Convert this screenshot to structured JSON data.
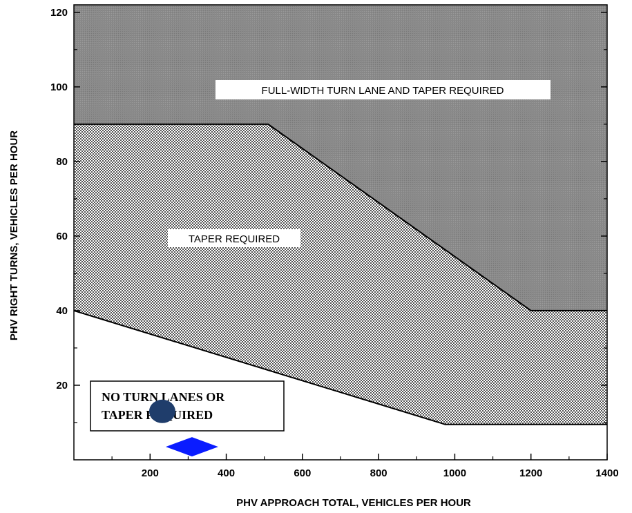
{
  "chart_data": {
    "type": "area",
    "xlabel": "PHV APPROACH TOTAL, VEHICLES PER HOUR",
    "ylabel": "PHV RIGHT TURNS, VEHICLES PER HOUR",
    "xlim": [
      0,
      1400
    ],
    "ylim": [
      0,
      122
    ],
    "xticks": [
      200,
      400,
      600,
      800,
      1000,
      1200,
      1400
    ],
    "yticks": [
      20,
      40,
      60,
      80,
      100,
      120
    ],
    "grid": false,
    "boundaries": [
      {
        "points": [
          [
            0,
            40
          ],
          [
            975,
            9.5
          ],
          [
            1400,
            9.5
          ]
        ]
      },
      {
        "points": [
          [
            0,
            90
          ],
          [
            510,
            90
          ],
          [
            1200,
            40
          ],
          [
            1400,
            40
          ]
        ]
      }
    ],
    "regions": [
      {
        "label": "FULL-WIDTH TURN LANE AND TAPER REQUIRED",
        "fill": "#8a8a8a"
      },
      {
        "label": "TAPER REQUIRED",
        "fill": "dotted"
      },
      {
        "label_lines": [
          "NO TURN LANES OR",
          "TAPER REQUIRED"
        ],
        "fill": "#ffffff"
      }
    ],
    "markers": [
      {
        "shape": "circle",
        "x": 232,
        "y": 13,
        "color": "#1f3d6b"
      },
      {
        "shape": "diamond",
        "x": 310,
        "y": 3.5,
        "color": "#0a1cff"
      }
    ]
  }
}
